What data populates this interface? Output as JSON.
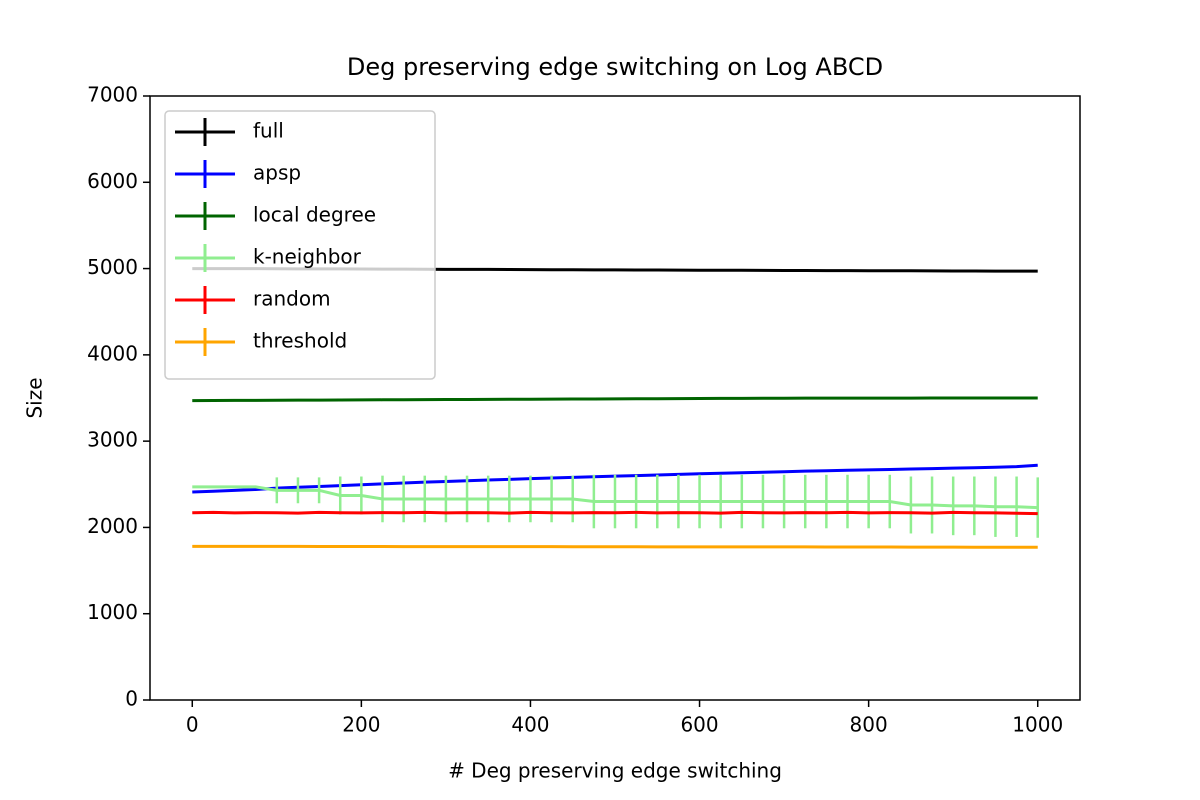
{
  "chart_data": {
    "type": "line",
    "title": "Deg preserving edge switching on Log ABCD",
    "x_label": "# Deg preserving edge switching",
    "y_label": "Size",
    "xlim": [
      -50,
      1050
    ],
    "ylim": [
      0,
      7000
    ],
    "xticks": [
      0,
      200,
      400,
      600,
      800,
      1000
    ],
    "yticks": [
      0,
      1000,
      2000,
      3000,
      4000,
      5000,
      6000,
      7000
    ],
    "legend": "upper left",
    "x": [
      0,
      25,
      50,
      75,
      100,
      125,
      150,
      175,
      200,
      225,
      250,
      275,
      300,
      325,
      350,
      375,
      400,
      425,
      450,
      475,
      500,
      525,
      550,
      575,
      600,
      625,
      650,
      675,
      700,
      725,
      750,
      775,
      800,
      825,
      850,
      875,
      900,
      925,
      950,
      975,
      1000
    ],
    "series": [
      {
        "name": "full",
        "color": "#000000",
        "values": [
          5000,
          5000,
          4999,
          4999,
          4998,
          4997,
          4996,
          4996,
          4995,
          4994,
          4993,
          4992,
          4991,
          4990,
          4990,
          4989,
          4988,
          4987,
          4986,
          4985,
          4985,
          4984,
          4983,
          4982,
          4981,
          4980,
          4980,
          4979,
          4978,
          4977,
          4976,
          4976,
          4975,
          4974,
          4974,
          4973,
          4972,
          4972,
          4971,
          4971,
          4970
        ]
      },
      {
        "name": "apsp",
        "color": "#0000ff",
        "values": [
          2410,
          2420,
          2430,
          2440,
          2455,
          2465,
          2475,
          2485,
          2495,
          2505,
          2515,
          2525,
          2533,
          2541,
          2549,
          2557,
          2565,
          2573,
          2580,
          2587,
          2594,
          2601,
          2608,
          2615,
          2622,
          2628,
          2634,
          2640,
          2646,
          2652,
          2657,
          2662,
          2667,
          2672,
          2677,
          2682,
          2687,
          2692,
          2697,
          2705,
          2720
        ]
      },
      {
        "name": "local degree",
        "color": "#006400",
        "values": [
          3470,
          3471,
          3472,
          3473,
          3474,
          3475,
          3476,
          3477,
          3478,
          3479,
          3480,
          3481,
          3482,
          3483,
          3484,
          3485,
          3486,
          3487,
          3488,
          3489,
          3490,
          3491,
          3492,
          3493,
          3494,
          3495,
          3496,
          3497,
          3497,
          3498,
          3498,
          3498,
          3499,
          3499,
          3499,
          3500,
          3500,
          3500,
          3500,
          3500,
          3500
        ]
      },
      {
        "name": "k-neighbor",
        "color": "#90ee90",
        "values": [
          2470,
          2470,
          2470,
          2470,
          2430,
          2430,
          2430,
          2370,
          2370,
          2330,
          2330,
          2330,
          2330,
          2330,
          2330,
          2330,
          2330,
          2330,
          2330,
          2300,
          2300,
          2300,
          2300,
          2300,
          2300,
          2300,
          2300,
          2300,
          2300,
          2300,
          2300,
          2300,
          2300,
          2300,
          2260,
          2260,
          2250,
          2250,
          2240,
          2240,
          2230
        ],
        "errors": [
          0,
          0,
          0,
          0,
          150,
          150,
          150,
          220,
          220,
          270,
          270,
          270,
          270,
          270,
          270,
          270,
          270,
          270,
          270,
          310,
          310,
          310,
          310,
          310,
          310,
          310,
          310,
          310,
          310,
          310,
          310,
          310,
          310,
          310,
          330,
          330,
          340,
          340,
          350,
          350,
          350
        ]
      },
      {
        "name": "random",
        "color": "#ff0000",
        "values": [
          2170,
          2175,
          2168,
          2172,
          2170,
          2166,
          2174,
          2170,
          2168,
          2172,
          2170,
          2175,
          2168,
          2172,
          2170,
          2166,
          2174,
          2170,
          2168,
          2172,
          2170,
          2175,
          2168,
          2172,
          2170,
          2166,
          2174,
          2170,
          2168,
          2172,
          2170,
          2175,
          2168,
          2172,
          2170,
          2166,
          2174,
          2170,
          2168,
          2165,
          2160
        ]
      },
      {
        "name": "threshold",
        "color": "#ffa500",
        "values": [
          1780,
          1780,
          1780,
          1780,
          1780,
          1780,
          1779,
          1779,
          1779,
          1779,
          1778,
          1778,
          1778,
          1778,
          1777,
          1777,
          1777,
          1777,
          1776,
          1776,
          1776,
          1776,
          1775,
          1775,
          1775,
          1775,
          1774,
          1774,
          1774,
          1774,
          1773,
          1773,
          1773,
          1773,
          1772,
          1772,
          1772,
          1771,
          1771,
          1770,
          1770
        ]
      }
    ]
  }
}
